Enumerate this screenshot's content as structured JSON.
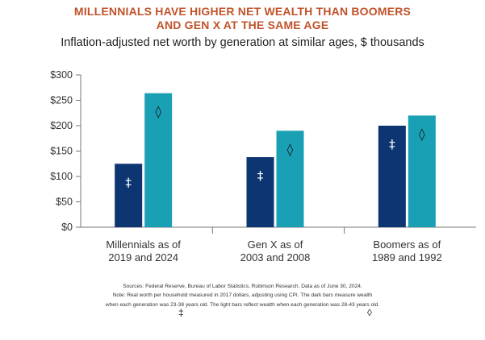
{
  "header": {
    "title_line1": "MILLENNIALS HAVE HIGHER NET WEALTH THAN BOOMERS",
    "title_line2": "AND GEN X AT THE SAME AGE",
    "subtitle": "Inflation-adjusted net worth by generation at similar ages, $ thousands"
  },
  "colors": {
    "dark": "#0d3572",
    "light": "#1aa0b5",
    "title": "#c0532a"
  },
  "chart_data": {
    "type": "bar",
    "categories": [
      [
        "Millennials as of",
        "2019 and 2024"
      ],
      [
        "Gen X as of",
        "2003 and 2008"
      ],
      [
        "Boomers as of",
        "1989 and 1992"
      ]
    ],
    "series": [
      {
        "marker": "‡",
        "values": [
          125,
          138,
          200
        ]
      },
      {
        "marker": "◊",
        "values": [
          264,
          190,
          220
        ]
      }
    ],
    "yticks": [
      "$0",
      "$50",
      "$100",
      "$150",
      "$200",
      "$250",
      "$300"
    ],
    "ylim": [
      0,
      300
    ]
  },
  "notes": {
    "line1": "Sources: Federal Reserve, Bureau of Labor Statistics, Rubinson Research. Data as of June 30, 2024.",
    "line2": "Note: Real worth per household measured in 2017 dollars, adjusting using CPI. The dark bars measure wealth",
    "line3": "when each generation was 23-38 years old. The light bars reflect wealth when each generation was 28-43 years old.",
    "dark_symbol": "‡",
    "light_symbol": "◊"
  }
}
